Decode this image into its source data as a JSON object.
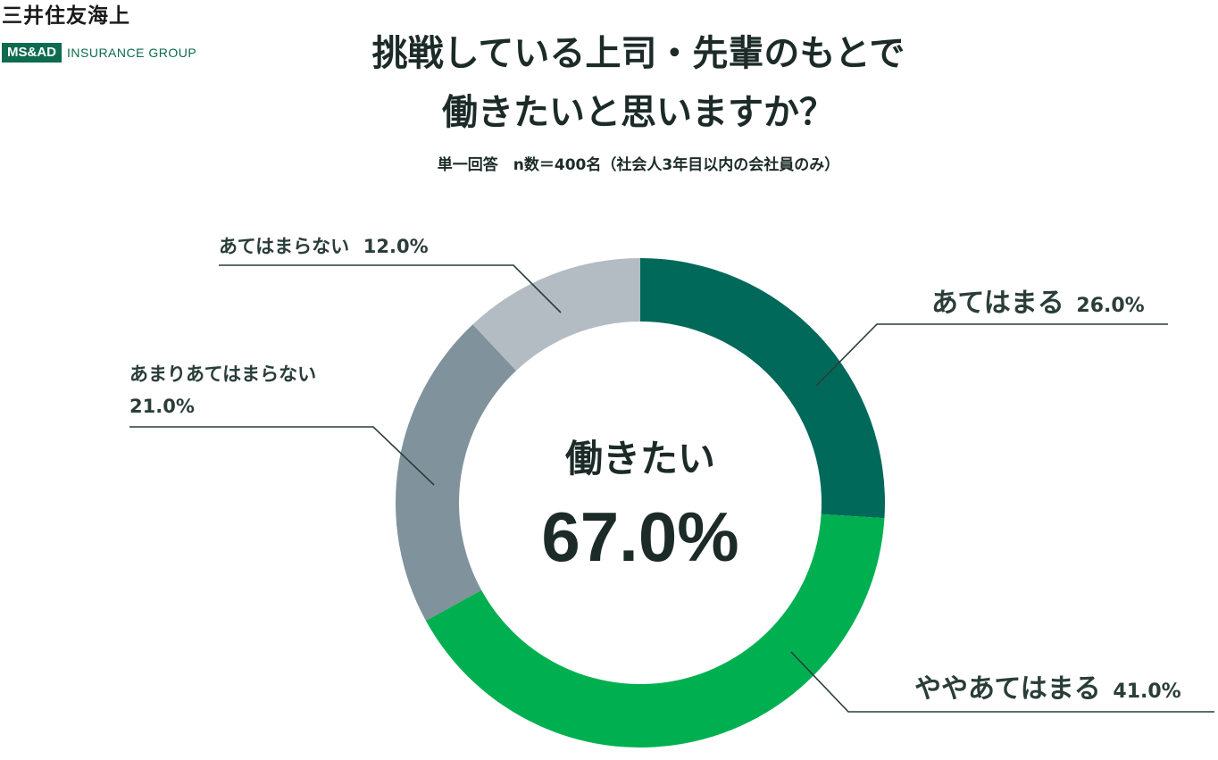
{
  "brand": {
    "name": "三井住友海上",
    "group_box": "MS&AD",
    "group_text": "INSURANCE GROUP"
  },
  "header": {
    "title_line1": "挑戦している上司・先輩のもとで",
    "title_line2": "働きたいと思いますか？",
    "subtitle": "単一回答　n数＝400名（社会人3年目以内の会社員のみ）"
  },
  "center": {
    "label": "働きたい",
    "value": "67.0%"
  },
  "chart_data": {
    "type": "pie",
    "donut": true,
    "start_angle": "12 o'clock",
    "direction": "clockwise",
    "slices": [
      {
        "label": "あてはまる",
        "value_text": "26.0%",
        "value": 26.0,
        "color": "#00695a"
      },
      {
        "label": "ややあてはまる",
        "value_text": "41.0%",
        "value": 41.0,
        "color": "#00b050"
      },
      {
        "label": "あまりあてはまらない",
        "value_text": "21.0%",
        "value": 21.0,
        "color": "#80929b"
      },
      {
        "label": "あてはまらない",
        "value_text": "12.0%",
        "value": 12.0,
        "color": "#b3bcc3"
      }
    ],
    "title": "挑戦している上司・先輩のもとで働きたいと思いますか？"
  }
}
